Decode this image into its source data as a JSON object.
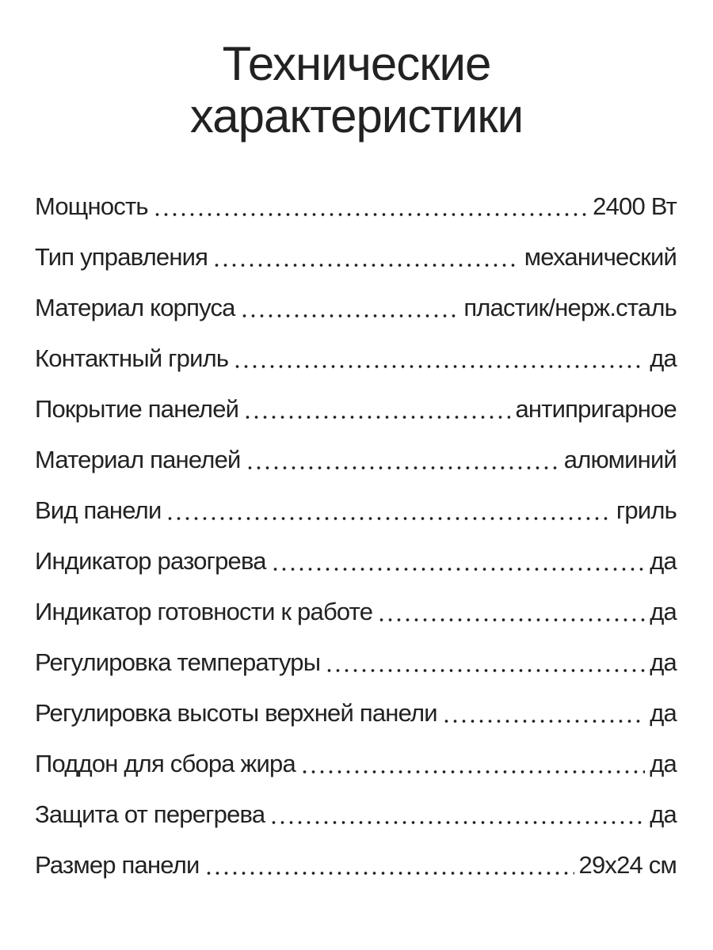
{
  "title": {
    "line1": "Технические",
    "line2": "характеристики"
  },
  "specs": [
    {
      "label": "Мощность",
      "value": "2400 Вт"
    },
    {
      "label": "Тип управления",
      "value": "механический"
    },
    {
      "label": "Материал корпуса",
      "value": "пластик/нерж.сталь"
    },
    {
      "label": "Контактный гриль",
      "value": "да"
    },
    {
      "label": "Покрытие панелей",
      "value": "антипригарное"
    },
    {
      "label": "Материал панелей",
      "value": "алюминий"
    },
    {
      "label": "Вид панели",
      "value": "гриль"
    },
    {
      "label": "Индикатор разогрева",
      "value": "да"
    },
    {
      "label": "Индикатор готовности к работе",
      "value": "да"
    },
    {
      "label": "Регулировка температуры",
      "value": "да"
    },
    {
      "label": "Регулировка высоты верхней панели",
      "value": "да"
    },
    {
      "label": "Поддон для сбора жира",
      "value": "да"
    },
    {
      "label": "Защита от перегрева",
      "value": "да"
    },
    {
      "label": "Размер панели",
      "value": "29x24 см"
    }
  ]
}
